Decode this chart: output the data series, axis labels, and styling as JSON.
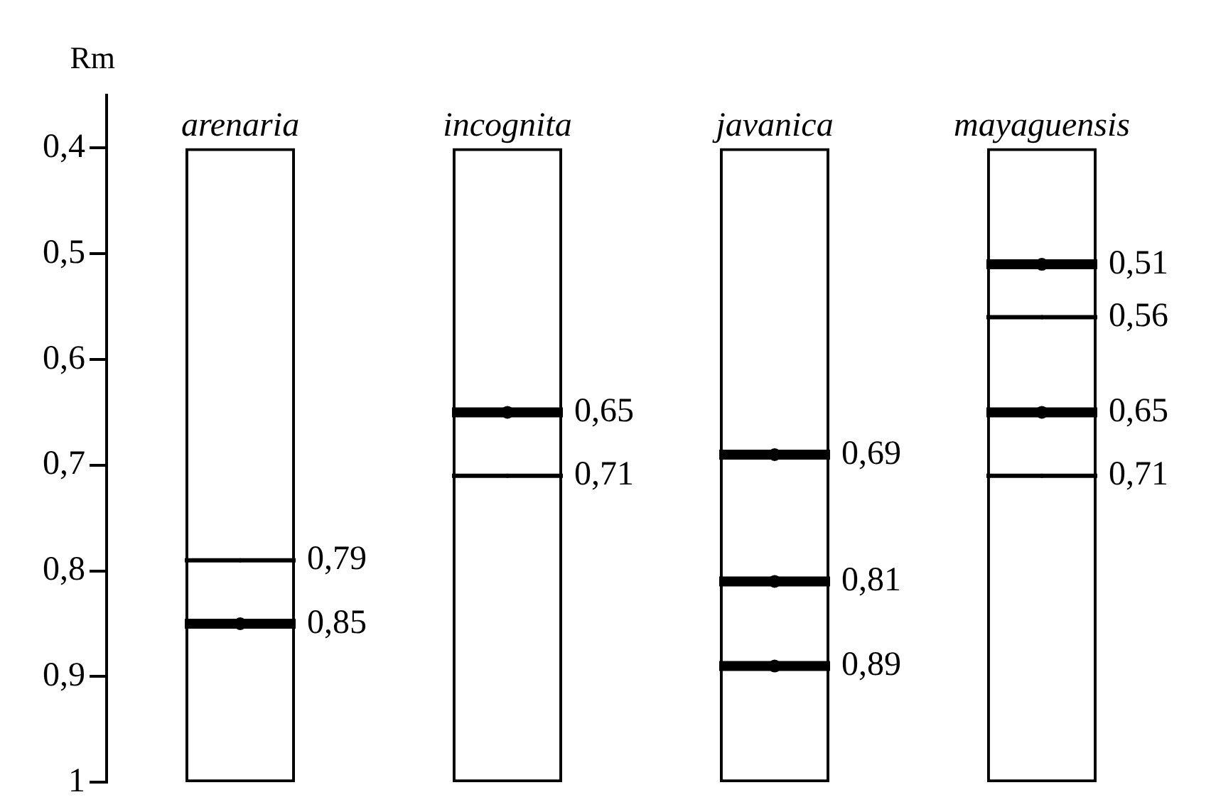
{
  "chart_data": {
    "type": "bar",
    "ylabel": "Rm",
    "categories": [
      "arenaria",
      "incognita",
      "javanica",
      "mayaguensis"
    ],
    "ylim": [
      1,
      0.35
    ],
    "yticks": [
      {
        "value": 0.4,
        "label": "0,4"
      },
      {
        "value": 0.5,
        "label": "0,5"
      },
      {
        "value": 0.6,
        "label": "0,6"
      },
      {
        "value": 0.7,
        "label": "0,7"
      },
      {
        "value": 0.8,
        "label": "0,8"
      },
      {
        "value": 0.9,
        "label": "0,9"
      },
      1
    ],
    "grid": false,
    "legend": false,
    "series": [
      {
        "color": "#000000",
        "base": [
          0.4,
          0.4,
          0.4,
          0.4
        ],
        "values": [
          0.6,
          0.6,
          0.6,
          0.6
        ]
      },
      {
        "type": "scatter",
        "color": "#000000",
        "x": [
          "arenaria",
          "incognita",
          "javanica",
          "javanica",
          "javanica",
          "mayaguensis",
          "mayaguensis"
        ],
        "values": [
          0.85,
          0.65,
          0.69,
          0.81,
          0.89,
          0.51,
          0.65
        ],
        "value_labels": [
          "0,85",
          "0,65",
          "0,69",
          "0,81",
          "0,89",
          "0,51",
          "0,65"
        ]
      },
      {
        "type": "scatter",
        "color": "#000000",
        "x": [
          "arenaria",
          "incognita",
          "mayaguensis",
          "mayaguensis"
        ],
        "values": [
          0.79,
          0.71,
          0.56,
          0.71
        ],
        "value_labels": [
          "0,79",
          "0,71",
          "0,56",
          "0,71"
        ]
      }
    ]
  }
}
